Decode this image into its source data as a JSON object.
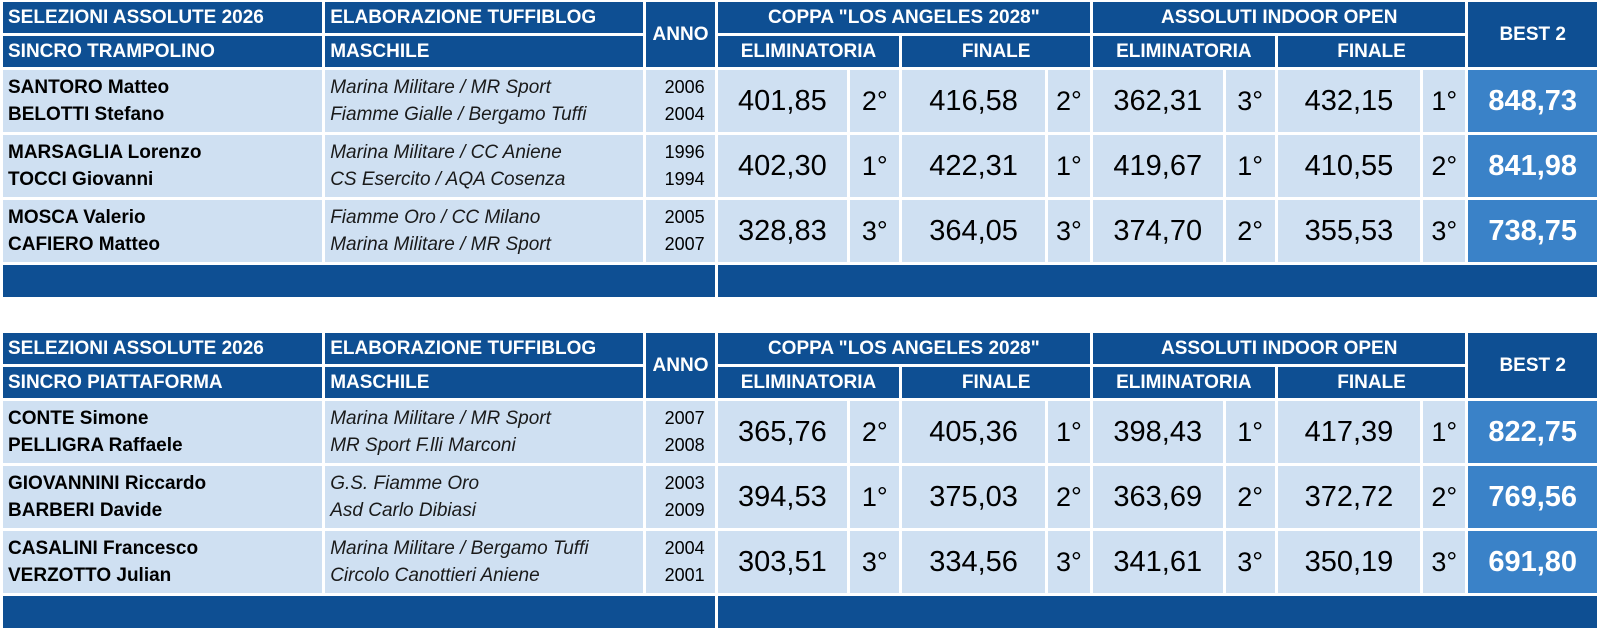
{
  "tables": [
    {
      "title_line1": "SELEZIONI ASSOLUTE 2026",
      "title_line2": "SINCRO TRAMPOLINO",
      "source_line1": "ELABORAZIONE TUFFIBLOG",
      "source_line2": "MASCHILE",
      "anno_label": "ANNO",
      "comp1": "COPPA \"LOS ANGELES 2028\"",
      "comp2": "ASSOLUTI INDOOR OPEN",
      "best_label": "BEST 2",
      "elim_label": "ELIMINATORIA",
      "final_label": "FINALE",
      "rows": [
        {
          "name1": "SANTORO Matteo",
          "name2": "BELOTTI Stefano",
          "club1": "Marina Militare / MR Sport",
          "club2": "Fiamme Gialle / Bergamo Tuffi",
          "year1": "2006",
          "year2": "2004",
          "c1_elim": "401,85",
          "c1_elim_pos": "2°",
          "c1_fin": "416,58",
          "c1_fin_pos": "2°",
          "c2_elim": "362,31",
          "c2_elim_pos": "3°",
          "c2_fin": "432,15",
          "c2_fin_pos": "1°",
          "best": "848,73"
        },
        {
          "name1": "MARSAGLIA Lorenzo",
          "name2": "TOCCI Giovanni",
          "club1": "Marina Militare / CC Aniene",
          "club2": "CS Esercito / AQA Cosenza",
          "year1": "1996",
          "year2": "1994",
          "c1_elim": "402,30",
          "c1_elim_pos": "1°",
          "c1_fin": "422,31",
          "c1_fin_pos": "1°",
          "c2_elim": "419,67",
          "c2_elim_pos": "1°",
          "c2_fin": "410,55",
          "c2_fin_pos": "2°",
          "best": "841,98"
        },
        {
          "name1": "MOSCA Valerio",
          "name2": "CAFIERO Matteo",
          "club1": "Fiamme Oro / CC Milano",
          "club2": "Marina Militare / MR Sport",
          "year1": "2005",
          "year2": "2007",
          "c1_elim": "328,83",
          "c1_elim_pos": "3°",
          "c1_fin": "364,05",
          "c1_fin_pos": "3°",
          "c2_elim": "374,70",
          "c2_elim_pos": "2°",
          "c2_fin": "355,53",
          "c2_fin_pos": "3°",
          "best": "738,75"
        }
      ]
    },
    {
      "title_line1": "SELEZIONI ASSOLUTE 2026",
      "title_line2": "SINCRO PIATTAFORMA",
      "source_line1": "ELABORAZIONE TUFFIBLOG",
      "source_line2": "MASCHILE",
      "anno_label": "ANNO",
      "comp1": "COPPA \"LOS ANGELES 2028\"",
      "comp2": "ASSOLUTI INDOOR OPEN",
      "best_label": "BEST 2",
      "elim_label": "ELIMINATORIA",
      "final_label": "FINALE",
      "rows": [
        {
          "name1": "CONTE Simone",
          "name2": "PELLIGRA Raffaele",
          "club1": "Marina Militare / MR Sport",
          "club2": "MR Sport F.lli Marconi",
          "year1": "2007",
          "year2": "2008",
          "c1_elim": "365,76",
          "c1_elim_pos": "2°",
          "c1_fin": "405,36",
          "c1_fin_pos": "1°",
          "c2_elim": "398,43",
          "c2_elim_pos": "1°",
          "c2_fin": "417,39",
          "c2_fin_pos": "1°",
          "best": "822,75"
        },
        {
          "name1": "GIOVANNINI Riccardo",
          "name2": "BARBERI Davide",
          "club1": "G.S. Fiamme Oro",
          "club2": "Asd Carlo Dibiasi",
          "year1": "2003",
          "year2": "2009",
          "c1_elim": "394,53",
          "c1_elim_pos": "1°",
          "c1_fin": "375,03",
          "c1_fin_pos": "2°",
          "c2_elim": "363,69",
          "c2_elim_pos": "2°",
          "c2_fin": "372,72",
          "c2_fin_pos": "2°",
          "best": "769,56"
        },
        {
          "name1": "CASALINI Francesco",
          "name2": "VERZOTTO Julian",
          "club1": "Marina Militare / Bergamo Tuffi",
          "club2": "Circolo Canottieri Aniene",
          "year1": "2004",
          "year2": "2001",
          "c1_elim": "303,51",
          "c1_elim_pos": "3°",
          "c1_fin": "334,56",
          "c1_fin_pos": "3°",
          "c2_elim": "341,61",
          "c2_elim_pos": "3°",
          "c2_fin": "350,19",
          "c2_fin_pos": "3°",
          "best": "691,80"
        }
      ]
    }
  ],
  "colors": {
    "header_bg": "#0e4f93",
    "cell_bg": "#cfe0f2",
    "best_bg": "#3a82c8",
    "header_text": "#ffffff"
  }
}
